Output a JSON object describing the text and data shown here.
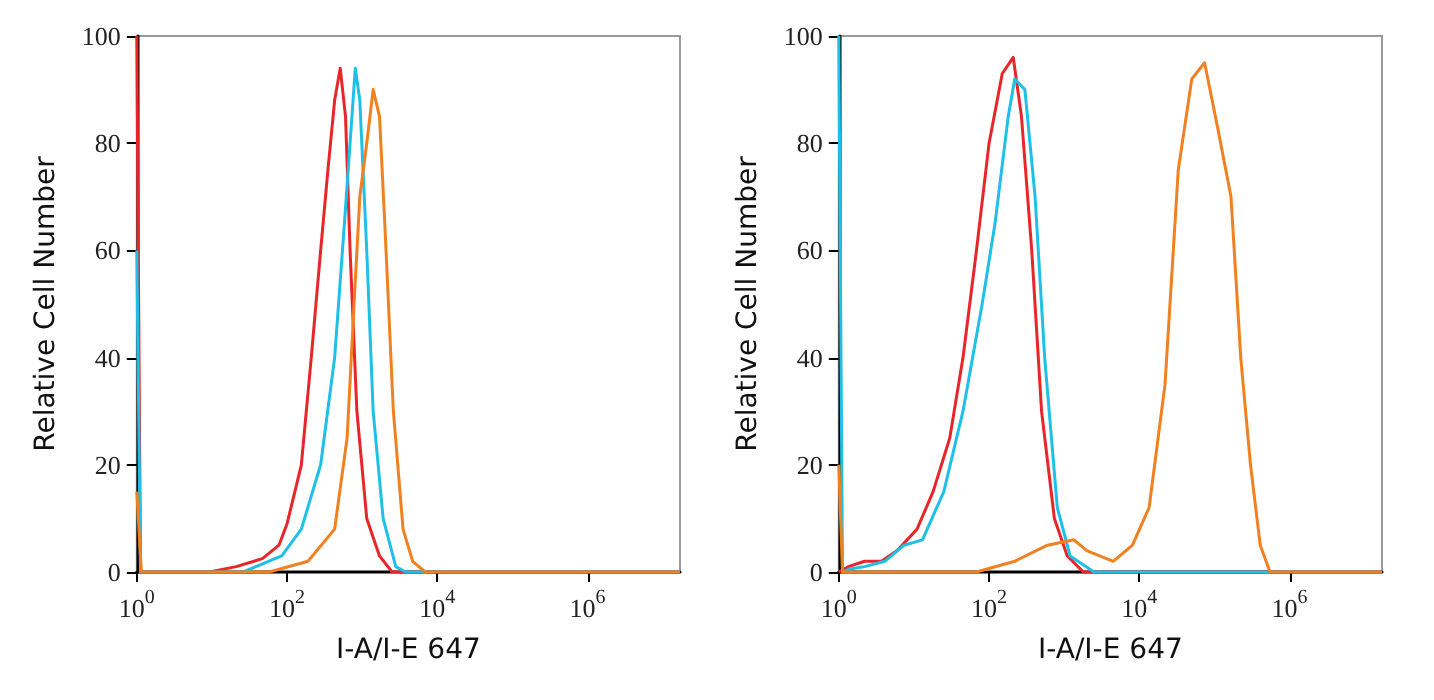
{
  "chart_data": [
    {
      "type": "line",
      "xlabel": "I-A/I-E 647",
      "ylabel": "Relative Cell Number",
      "log": "x",
      "grid": false,
      "marker": "none",
      "line_style": "solid",
      "xlim": [
        1,
        17000000
      ],
      "ylim": [
        0,
        100
      ],
      "xticks": [
        {
          "value": 1,
          "label": "10$^{0}$"
        },
        {
          "value": 100,
          "label": "10$^{2}$"
        },
        {
          "value": 10000,
          "label": "10$^{4}$"
        },
        {
          "value": 1000000,
          "label": "10$^{6}$"
        }
      ],
      "yticks": [
        0,
        20,
        40,
        60,
        80,
        100
      ],
      "series": [
        {
          "color": "#e8262a",
          "x": [
            1,
            1.12,
            9.3,
            21,
            47,
            78,
            100,
            155,
            210,
            280,
            350,
            430,
            510,
            600,
            690,
            850,
            1150,
            1700,
            2500,
            17000000
          ],
          "values": [
            100,
            0,
            0,
            1,
            2.5,
            5,
            9,
            20,
            40,
            60,
            75,
            88,
            94,
            85,
            60,
            30,
            10,
            3,
            0,
            0
          ]
        },
        {
          "color": "#1ec0e8",
          "x": [
            1,
            1.12,
            26,
            85,
            155,
            280,
            430,
            580,
            690,
            810,
            930,
            1150,
            1400,
            1900,
            2800,
            3800,
            17000000
          ],
          "values": [
            60,
            0,
            0,
            3,
            8,
            20,
            40,
            65,
            80,
            94,
            88,
            60,
            30,
            10,
            1,
            0,
            0
          ]
        },
        {
          "color": "#f08020",
          "x": [
            1,
            1.15,
            58,
            190,
            430,
            630,
            780,
            930,
            1150,
            1400,
            1700,
            2000,
            2600,
            3500,
            4700,
            6900,
            17000000
          ],
          "values": [
            15,
            0,
            0,
            2,
            8,
            25,
            50,
            70,
            80,
            90,
            85,
            65,
            30,
            8,
            2,
            0,
            0
          ]
        }
      ]
    },
    {
      "type": "line",
      "xlabel": "I-A/I-E 647",
      "ylabel": "Relative Cell Number",
      "log": "x",
      "grid": false,
      "marker": "none",
      "line_style": "solid",
      "xlim": [
        1,
        17000000
      ],
      "ylim": [
        0,
        100
      ],
      "xticks": [
        {
          "value": 1,
          "label": "10$^{0}$"
        },
        {
          "value": 100,
          "label": "10$^{2}$"
        },
        {
          "value": 10000,
          "label": "10$^{4}$"
        },
        {
          "value": 1000000,
          "label": "10$^{6}$"
        }
      ],
      "yticks": [
        0,
        20,
        40,
        60,
        80,
        100
      ],
      "series": [
        {
          "color": "#e8262a",
          "x": [
            1,
            1.35,
            2.2,
            3.7,
            6,
            11,
            18,
            30,
            45,
            68,
            100,
            150,
            210,
            270,
            370,
            500,
            740,
            1100,
            1800,
            17000000
          ],
          "values": [
            0,
            1,
            2,
            2,
            4,
            8,
            15,
            25,
            40,
            60,
            80,
            93,
            96,
            85,
            60,
            30,
            10,
            3,
            0,
            0
          ]
        },
        {
          "color": "#1ec0e8",
          "x": [
            1,
            1.12,
            1.35,
            2.2,
            4.1,
            7.4,
            13,
            25,
            45,
            81,
            120,
            180,
            220,
            300,
            410,
            550,
            810,
            1200,
            2500,
            17000000
          ],
          "values": [
            100,
            0,
            0.5,
            1,
            2,
            5,
            6,
            15,
            30,
            50,
            65,
            85,
            92,
            90,
            70,
            40,
            12,
            3,
            0,
            0
          ]
        },
        {
          "color": "#f08020",
          "x": [
            1,
            1.12,
            68,
            220,
            600,
            1350,
            2000,
            4500,
            8100,
            13500,
            22000,
            33000,
            50000,
            74000,
            110000,
            166000,
            224000,
            302000,
            407000,
            550000,
            17000000
          ],
          "values": [
            20,
            0,
            0,
            2,
            5,
            6,
            4,
            2,
            5,
            12,
            35,
            75,
            92,
            95,
            83,
            70,
            40,
            20,
            5,
            0,
            0
          ]
        }
      ]
    }
  ]
}
